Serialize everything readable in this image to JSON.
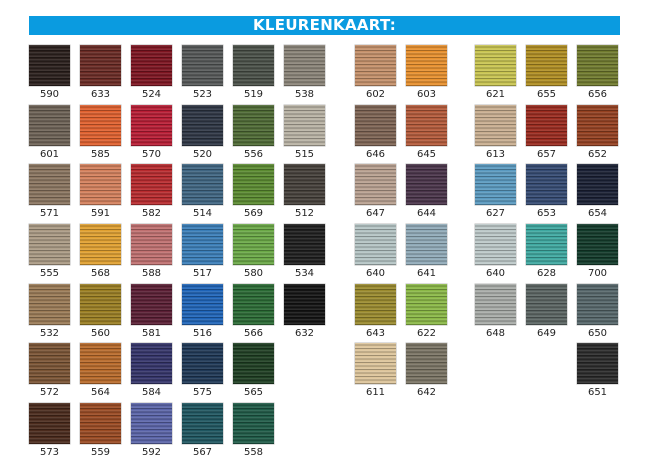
{
  "title": "KLEURENKAART:",
  "groups": [
    {
      "columns": 6,
      "rows": [
        [
          {
            "code": "590",
            "color": "#2a1f1c"
          },
          {
            "code": "633",
            "color": "#6a2a24"
          },
          {
            "code": "524",
            "color": "#7d1420"
          },
          {
            "code": "523",
            "color": "#555858"
          },
          {
            "code": "519",
            "color": "#4a5048"
          },
          {
            "code": "538",
            "color": "#8a8478"
          }
        ],
        [
          {
            "code": "601",
            "color": "#6d6256"
          },
          {
            "code": "585",
            "color": "#e0602e"
          },
          {
            "code": "570",
            "color": "#b81c34"
          },
          {
            "code": "520",
            "color": "#2e3644"
          },
          {
            "code": "556",
            "color": "#4e6a34"
          },
          {
            "code": "515",
            "color": "#b8b2a4"
          }
        ],
        [
          {
            "code": "571",
            "color": "#8a7560"
          },
          {
            "code": "591",
            "color": "#d4805c"
          },
          {
            "code": "582",
            "color": "#b82a2e"
          },
          {
            "code": "514",
            "color": "#3f6582"
          },
          {
            "code": "569",
            "color": "#5a8a30"
          },
          {
            "code": "512",
            "color": "#45403a"
          }
        ],
        [
          {
            "code": "555",
            "color": "#aa9a84"
          },
          {
            "code": "568",
            "color": "#e0a030"
          },
          {
            "code": "588",
            "color": "#c07070"
          },
          {
            "code": "517",
            "color": "#3a7eb8"
          },
          {
            "code": "580",
            "color": "#6aa846"
          },
          {
            "code": "534",
            "color": "#1e1e1e"
          }
        ],
        [
          {
            "code": "532",
            "color": "#9a7a56"
          },
          {
            "code": "560",
            "color": "#9a7e22"
          },
          {
            "code": "581",
            "color": "#5a1e34"
          },
          {
            "code": "516",
            "color": "#1e64b8"
          },
          {
            "code": "566",
            "color": "#2a6a34"
          },
          {
            "code": "632",
            "color": "#141414"
          }
        ],
        [
          {
            "code": "572",
            "color": "#7a5434"
          },
          {
            "code": "564",
            "color": "#b86a2a"
          },
          {
            "code": "584",
            "color": "#34346a"
          },
          {
            "code": "575",
            "color": "#1e3856"
          },
          {
            "code": "565",
            "color": "#1e3e22"
          },
          null
        ],
        [
          {
            "code": "573",
            "color": "#4a2a1c"
          },
          {
            "code": "559",
            "color": "#9a4a22"
          },
          {
            "code": "592",
            "color": "#5a64a8"
          },
          {
            "code": "567",
            "color": "#1e5660"
          },
          {
            "code": "558",
            "color": "#1e5a46"
          },
          null
        ]
      ]
    },
    {
      "columns": 2,
      "rows": [
        [
          {
            "code": "602",
            "color": "#c4906a"
          },
          {
            "code": "603",
            "color": "#e8902e"
          }
        ],
        [
          {
            "code": "646",
            "color": "#7e6454"
          },
          {
            "code": "645",
            "color": "#b45a3a"
          }
        ],
        [
          {
            "code": "647",
            "color": "#b8a090"
          },
          {
            "code": "644",
            "color": "#4a344a"
          }
        ],
        [
          {
            "code": "640",
            "color": "#b4c4c4"
          },
          {
            "code": "641",
            "color": "#90aab8"
          }
        ],
        [
          {
            "code": "643",
            "color": "#9a8a2e"
          },
          {
            "code": "622",
            "color": "#8ab846"
          }
        ],
        [
          {
            "code": "611",
            "color": "#dcc49a"
          },
          {
            "code": "642",
            "color": "#7a7464"
          }
        ]
      ]
    },
    {
      "columns": 3,
      "rows": [
        [
          {
            "code": "621",
            "color": "#c8c450"
          },
          {
            "code": "655",
            "color": "#b08e22"
          },
          {
            "code": "656",
            "color": "#707a2e"
          }
        ],
        [
          {
            "code": "613",
            "color": "#c8ae90"
          },
          {
            "code": "657",
            "color": "#9a2a1e"
          },
          {
            "code": "652",
            "color": "#944020"
          }
        ],
        [
          {
            "code": "627",
            "color": "#5a9ac0"
          },
          {
            "code": "653",
            "color": "#344a72"
          },
          {
            "code": "654",
            "color": "#1a2034"
          }
        ],
        [
          {
            "code": "640",
            "color": "#bcc8c8"
          },
          {
            "code": "628",
            "color": "#3ea8a0"
          },
          {
            "code": "700",
            "color": "#123a2a"
          }
        ],
        [
          {
            "code": "648",
            "color": "#a8aca8"
          },
          {
            "code": "649",
            "color": "#5a6462"
          },
          {
            "code": "650",
            "color": "#56666a"
          }
        ],
        [
          null,
          null,
          {
            "code": "651",
            "color": "#2a2a2a"
          }
        ]
      ]
    }
  ]
}
